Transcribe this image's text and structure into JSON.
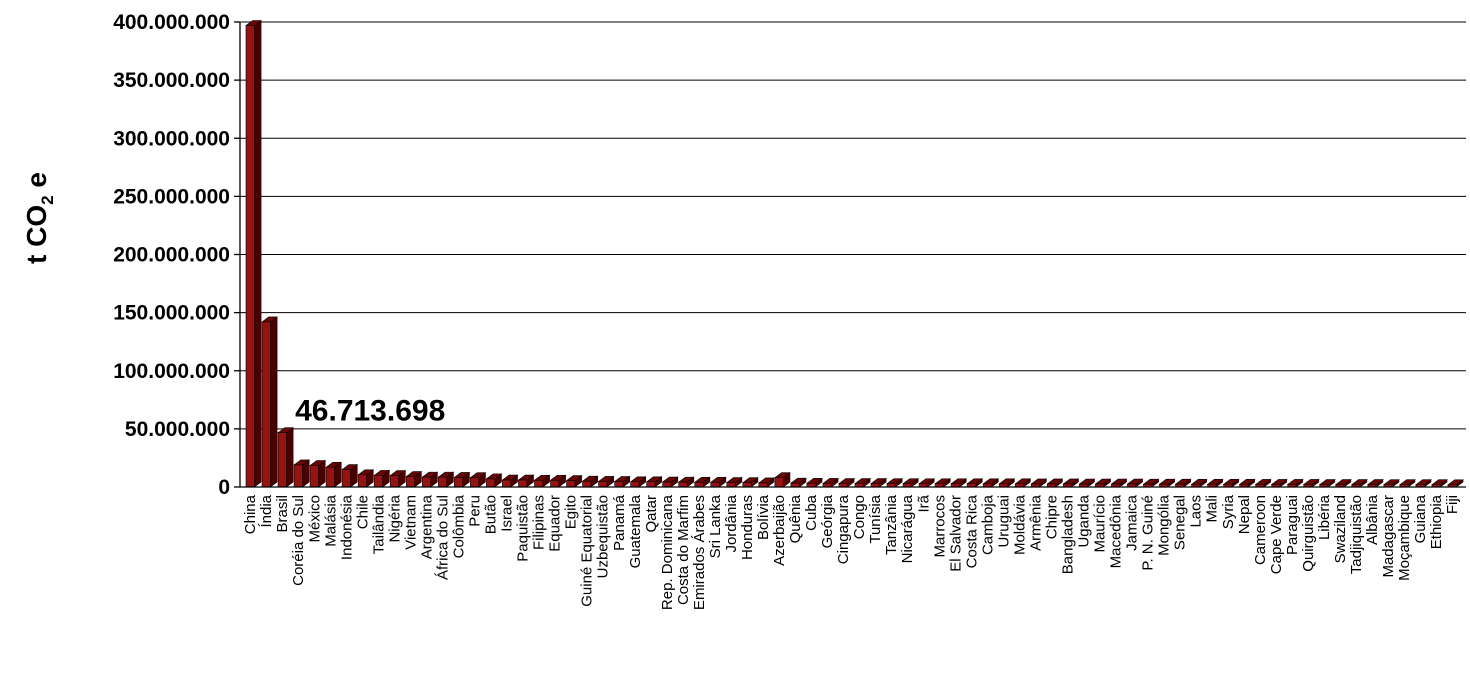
{
  "chart_data": {
    "type": "bar",
    "title": "",
    "xlabel": "",
    "ylabel": {
      "prefix": "t CO",
      "sub": "2",
      "suffix": " e"
    },
    "ylim": [
      0,
      400000000
    ],
    "yticks": [
      0,
      50000000,
      100000000,
      150000000,
      200000000,
      250000000,
      300000000,
      350000000,
      400000000
    ],
    "ytick_labels": [
      "0",
      "50.000.000",
      "100.000.000",
      "150.000.000",
      "200.000.000",
      "250.000.000",
      "300.000.000",
      "350.000.000",
      "400.000.000"
    ],
    "grid": true,
    "colors": {
      "bar_front": "#9b1010",
      "bar_side": "#4a0000",
      "bar_top": "#6e0505"
    },
    "annotation": {
      "text": "46.713.698",
      "category": "Brasil"
    },
    "categories": [
      "China",
      "Índia",
      "Brasil",
      "Coréia do Sul",
      "México",
      "Malásia",
      "Indonésia",
      "Chile",
      "Tailândia",
      "Nigéria",
      "Vietnam",
      "Argentina",
      "África do Sul",
      "Colômbia",
      "Peru",
      "Butão",
      "Israel",
      "Paquistão",
      "Filipinas",
      "Equador",
      "Egito",
      "Guiné Equatorial",
      "Uzbequistão",
      "Panamá",
      "Guatemala",
      "Qatar",
      "Rep. Dominicana",
      "Costa do Marfim",
      "Emirados Árabes",
      "Sri Lanka",
      "Jordânia",
      "Honduras",
      "Bolívia",
      "Azerbaijão",
      "Quênia",
      "Cuba",
      "Geórgia",
      "Cingapura",
      "Congo",
      "Tunísia",
      "Tanzânia",
      "Nicarágua",
      "Irã",
      "Marrocos",
      "El Salvador",
      "Costa Rica",
      "Camboja",
      "Uruguai",
      "Moldávia",
      "Armênia",
      "Chipre",
      "Bangladesh",
      "Uganda",
      "Maurício",
      "Macedônia",
      "Jamaica",
      "P. N. Guiné",
      "Mongólia",
      "Senegal",
      "Laos",
      "Mali",
      "Syria",
      "Nepal",
      "Cameroon",
      "Cape Verde",
      "Paraguai",
      "Quirguistão",
      "Libéria",
      "Swaziland",
      "Tadjiquistão",
      "Albânia",
      "Madagascar",
      "Moçambique",
      "Guiana",
      "Ethiopia",
      "Fiji"
    ],
    "values": [
      397000000,
      142000000,
      46713698,
      19000000,
      18500000,
      17000000,
      15000000,
      10500000,
      10000000,
      9800000,
      9000000,
      8500000,
      8500000,
      8200000,
      8000000,
      7000000,
      6000000,
      6000000,
      5800000,
      5800000,
      5500000,
      5000000,
      4800000,
      4700000,
      4500000,
      4500000,
      4300000,
      4200000,
      4000000,
      4000000,
      3800000,
      3700000,
      3500000,
      8000000,
      3300000,
      3200000,
      3100000,
      3000000,
      3000000,
      3000000,
      2900000,
      2900000,
      2800000,
      2800000,
      2800000,
      2800000,
      2700000,
      2700000,
      2700000,
      2600000,
      2600000,
      2600000,
      2500000,
      2500000,
      2500000,
      2500000,
      2400000,
      2400000,
      2400000,
      2300000,
      2300000,
      2300000,
      2300000,
      2200000,
      2200000,
      2200000,
      2200000,
      2100000,
      2100000,
      2100000,
      2100000,
      2000000,
      2000000,
      2000000,
      2000000,
      1900000
    ]
  }
}
